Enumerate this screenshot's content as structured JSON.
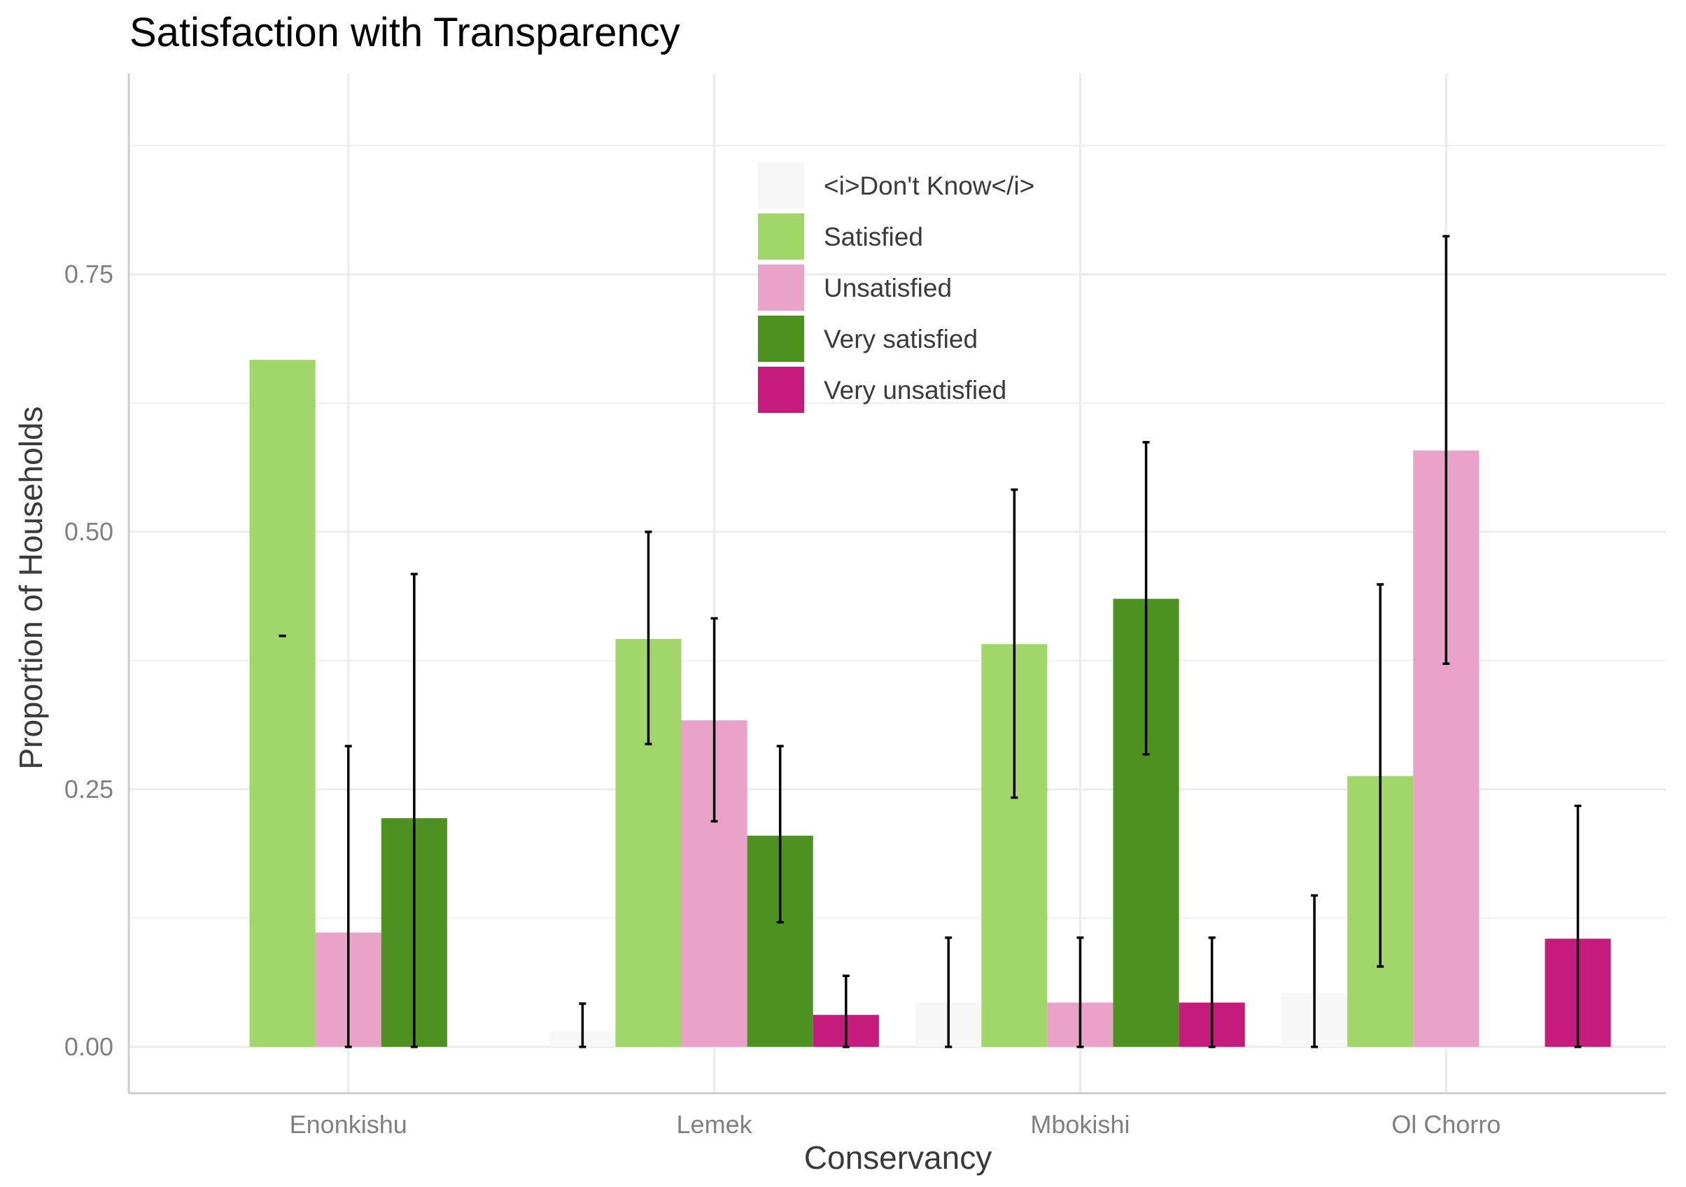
{
  "chart_data": {
    "type": "bar",
    "title": "Satisfaction with Transparency",
    "xlabel": "Conservancy",
    "ylabel": "Proportion of Households",
    "categories": [
      "Enonkishu",
      "Lemek",
      "Mbokishi",
      "Ol Chorro"
    ],
    "ylim": [
      -0.045,
      0.945
    ],
    "yticks": [
      0,
      0.25,
      0.5,
      0.75
    ],
    "ytick_labels": [
      "0.00",
      "0.25",
      "0.50",
      "0.75"
    ],
    "grid": true,
    "legend_position": "top-center",
    "series": [
      {
        "name": "<i>Don't Know</i>",
        "color": "#f7f7f7",
        "values": [
          null,
          0.015,
          0.043,
          0.052
        ],
        "error_low": [
          null,
          0,
          0,
          0
        ],
        "error_high": [
          null,
          0.042,
          0.106,
          0.147
        ]
      },
      {
        "name": "Satisfied",
        "color": "#a1d76a",
        "values": [
          0.667,
          0.396,
          0.391,
          0.263
        ],
        "error_low": [
          0.399,
          0.294,
          0.242,
          0.078
        ],
        "error_high": [
          0.399,
          0.5,
          0.541,
          0.449
        ]
      },
      {
        "name": "Unsatisfied",
        "color": "#e9a3c9",
        "values": [
          0.111,
          0.317,
          0.043,
          0.579
        ],
        "error_low": [
          0,
          0.219,
          0,
          0.372
        ],
        "error_high": [
          0.292,
          0.416,
          0.106,
          0.787
        ]
      },
      {
        "name": "Very satisfied",
        "color": "#4d9221",
        "values": [
          0.222,
          0.205,
          0.435,
          null
        ],
        "error_low": [
          0,
          0.121,
          0.284,
          null
        ],
        "error_high": [
          0.459,
          0.292,
          0.587,
          null
        ]
      },
      {
        "name": "Very unsatisfied",
        "color": "#c51b7d",
        "values": [
          null,
          0.031,
          0.043,
          0.105
        ],
        "error_low": [
          null,
          0,
          0,
          0
        ],
        "error_high": [
          null,
          0.069,
          0.106,
          0.234
        ]
      }
    ]
  }
}
